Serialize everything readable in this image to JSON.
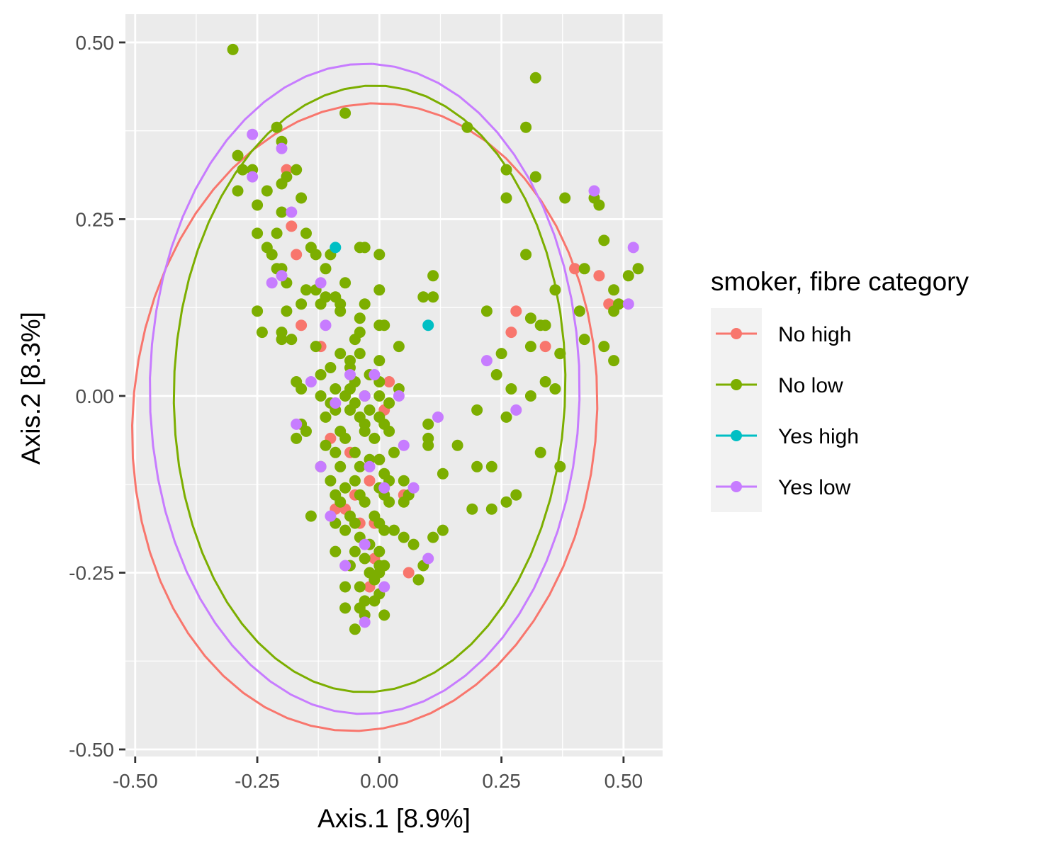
{
  "chart_data": {
    "type": "scatter",
    "xlabel": "Axis.1   [8.9%]",
    "ylabel": "Axis.2   [8.3%]",
    "xlim": [
      -0.52,
      0.58
    ],
    "ylim": [
      -0.51,
      0.54
    ],
    "x_ticks": [
      -0.5,
      -0.25,
      0.0,
      0.25,
      0.5
    ],
    "x_tick_labels": [
      "-0.50",
      "-0.25",
      "0.00",
      "0.25",
      "0.50"
    ],
    "y_ticks": [
      -0.5,
      -0.25,
      0.0,
      0.25,
      0.5
    ],
    "y_tick_labels": [
      "-0.50",
      "-0.25",
      "0.00",
      "0.25",
      "0.50"
    ],
    "grid": true,
    "background": "#ebebeb",
    "legend": {
      "title": "smoker, fibre category",
      "placement": "right",
      "entries": [
        "No high",
        "No low",
        "Yes high",
        "Yes low"
      ]
    },
    "series": [
      {
        "name": "No high",
        "color": "#f8766d",
        "points": [
          [
            -0.19,
            0.32
          ],
          [
            -0.18,
            0.24
          ],
          [
            -0.17,
            0.2
          ],
          [
            -0.16,
            0.1
          ],
          [
            -0.12,
            0.07
          ],
          [
            -0.1,
            -0.06
          ],
          [
            -0.09,
            -0.16
          ],
          [
            -0.07,
            -0.16
          ],
          [
            -0.06,
            -0.08
          ],
          [
            -0.05,
            -0.14
          ],
          [
            -0.04,
            -0.18
          ],
          [
            -0.02,
            -0.12
          ],
          [
            -0.01,
            -0.18
          ],
          [
            0.0,
            -0.09
          ],
          [
            -0.02,
            -0.27
          ],
          [
            -0.01,
            -0.23
          ],
          [
            0.02,
            0.02
          ],
          [
            0.01,
            -0.02
          ],
          [
            -0.03,
            0.0
          ],
          [
            0.05,
            -0.14
          ],
          [
            0.06,
            -0.25
          ],
          [
            0.27,
            0.09
          ],
          [
            0.28,
            0.12
          ],
          [
            0.34,
            0.07
          ],
          [
            0.4,
            0.18
          ],
          [
            0.45,
            0.17
          ],
          [
            0.47,
            0.13
          ]
        ],
        "ellipse": {
          "center": [
            -0.03,
            -0.03
          ],
          "semi_axes": [
            0.48,
            0.44
          ],
          "angle_deg": 18
        }
      },
      {
        "name": "No low",
        "color": "#7cae00",
        "points": [
          [
            -0.3,
            0.49
          ],
          [
            0.32,
            0.45
          ],
          [
            -0.07,
            0.4
          ],
          [
            0.18,
            0.38
          ],
          [
            0.3,
            0.38
          ],
          [
            -0.21,
            0.38
          ],
          [
            -0.2,
            0.36
          ],
          [
            -0.29,
            0.34
          ],
          [
            -0.28,
            0.32
          ],
          [
            -0.26,
            0.32
          ],
          [
            -0.17,
            0.32
          ],
          [
            0.26,
            0.32
          ],
          [
            0.32,
            0.31
          ],
          [
            -0.19,
            0.31
          ],
          [
            -0.2,
            0.3
          ],
          [
            -0.29,
            0.29
          ],
          [
            -0.23,
            0.29
          ],
          [
            0.26,
            0.28
          ],
          [
            0.38,
            0.28
          ],
          [
            -0.16,
            0.28
          ],
          [
            0.44,
            0.28
          ],
          [
            0.45,
            0.27
          ],
          [
            -0.25,
            0.27
          ],
          [
            -0.2,
            0.26
          ],
          [
            -0.25,
            0.23
          ],
          [
            -0.21,
            0.23
          ],
          [
            -0.15,
            0.23
          ],
          [
            0.46,
            0.22
          ],
          [
            -0.23,
            0.21
          ],
          [
            -0.03,
            0.21
          ],
          [
            -0.04,
            0.21
          ],
          [
            0.3,
            0.2
          ],
          [
            -0.14,
            0.21
          ],
          [
            -0.13,
            0.2
          ],
          [
            -0.1,
            0.2
          ],
          [
            0.0,
            0.2
          ],
          [
            -0.22,
            0.2
          ],
          [
            -0.21,
            0.18
          ],
          [
            -0.2,
            0.18
          ],
          [
            -0.11,
            0.18
          ],
          [
            0.53,
            0.18
          ],
          [
            0.51,
            0.17
          ],
          [
            0.42,
            0.18
          ],
          [
            0.11,
            0.17
          ],
          [
            -0.07,
            0.16
          ],
          [
            -0.19,
            0.16
          ],
          [
            0.36,
            0.15
          ],
          [
            -0.15,
            0.15
          ],
          [
            -0.13,
            0.15
          ],
          [
            -0.11,
            0.14
          ],
          [
            -0.09,
            0.14
          ],
          [
            0.48,
            0.15
          ],
          [
            0.0,
            0.15
          ],
          [
            0.09,
            0.14
          ],
          [
            0.11,
            0.14
          ],
          [
            -0.16,
            0.13
          ],
          [
            -0.12,
            0.13
          ],
          [
            -0.08,
            0.13
          ],
          [
            -0.03,
            0.13
          ],
          [
            -0.25,
            0.12
          ],
          [
            -0.19,
            0.12
          ],
          [
            0.22,
            0.12
          ],
          [
            0.48,
            0.12
          ],
          [
            0.49,
            0.13
          ],
          [
            0.31,
            0.11
          ],
          [
            0.41,
            0.12
          ],
          [
            -0.08,
            0.12
          ],
          [
            -0.04,
            0.11
          ],
          [
            0.33,
            0.1
          ],
          [
            0.34,
            0.1
          ],
          [
            0.0,
            0.1
          ],
          [
            0.01,
            0.1
          ],
          [
            -0.2,
            0.09
          ],
          [
            -0.24,
            0.09
          ],
          [
            -0.04,
            0.09
          ],
          [
            -0.18,
            0.08
          ],
          [
            -0.05,
            0.08
          ],
          [
            0.42,
            0.08
          ],
          [
            -0.2,
            0.08
          ],
          [
            0.31,
            0.07
          ],
          [
            -0.13,
            0.07
          ],
          [
            0.37,
            0.06
          ],
          [
            0.46,
            0.07
          ],
          [
            -0.08,
            0.06
          ],
          [
            -0.04,
            0.06
          ],
          [
            0.04,
            0.07
          ],
          [
            -0.06,
            0.05
          ],
          [
            0.0,
            0.05
          ],
          [
            0.25,
            0.06
          ],
          [
            0.37,
            0.06
          ],
          [
            -0.1,
            0.04
          ],
          [
            -0.06,
            0.04
          ],
          [
            0.48,
            0.05
          ],
          [
            -0.12,
            0.03
          ],
          [
            0.24,
            0.03
          ],
          [
            -0.05,
            0.02
          ],
          [
            -0.02,
            0.03
          ],
          [
            0.27,
            0.01
          ],
          [
            0.34,
            0.02
          ],
          [
            0.36,
            0.01
          ],
          [
            -0.17,
            0.02
          ],
          [
            -0.16,
            0.01
          ],
          [
            -0.09,
            0.01
          ],
          [
            -0.06,
            0.01
          ],
          [
            0.0,
            0.02
          ],
          [
            0.04,
            0.01
          ],
          [
            -0.12,
            0.0
          ],
          [
            -0.07,
            0.0
          ],
          [
            -0.03,
            0.0
          ],
          [
            0.0,
            0.0
          ],
          [
            0.31,
            0.0
          ],
          [
            -0.1,
            -0.01
          ],
          [
            -0.05,
            -0.01
          ],
          [
            -0.02,
            -0.02
          ],
          [
            0.02,
            -0.01
          ],
          [
            0.2,
            -0.02
          ],
          [
            -0.09,
            -0.02
          ],
          [
            -0.06,
            -0.02
          ],
          [
            -0.04,
            -0.03
          ],
          [
            0.0,
            -0.03
          ],
          [
            0.26,
            -0.03
          ],
          [
            -0.11,
            -0.03
          ],
          [
            -0.03,
            -0.04
          ],
          [
            0.01,
            -0.04
          ],
          [
            0.1,
            -0.04
          ],
          [
            -0.16,
            -0.04
          ],
          [
            -0.15,
            -0.05
          ],
          [
            -0.08,
            -0.05
          ],
          [
            -0.03,
            -0.05
          ],
          [
            0.02,
            -0.05
          ],
          [
            -0.07,
            -0.06
          ],
          [
            -0.01,
            -0.06
          ],
          [
            0.1,
            -0.06
          ],
          [
            0.16,
            -0.07
          ],
          [
            -0.17,
            -0.06
          ],
          [
            -0.11,
            -0.07
          ],
          [
            -0.05,
            -0.08
          ],
          [
            0.03,
            -0.08
          ],
          [
            -0.09,
            -0.08
          ],
          [
            -0.02,
            -0.09
          ],
          [
            0.0,
            -0.09
          ],
          [
            0.1,
            -0.07
          ],
          [
            0.2,
            -0.1
          ],
          [
            0.23,
            -0.1
          ],
          [
            -0.12,
            -0.1
          ],
          [
            -0.08,
            -0.1
          ],
          [
            -0.04,
            -0.1
          ],
          [
            0.01,
            -0.11
          ],
          [
            0.13,
            -0.11
          ],
          [
            -0.05,
            -0.12
          ],
          [
            0.02,
            -0.12
          ],
          [
            0.37,
            -0.1
          ],
          [
            0.33,
            -0.08
          ],
          [
            -0.1,
            -0.12
          ],
          [
            -0.07,
            -0.13
          ],
          [
            0.0,
            -0.13
          ],
          [
            0.05,
            -0.12
          ],
          [
            -0.09,
            -0.14
          ],
          [
            -0.04,
            -0.14
          ],
          [
            0.01,
            -0.14
          ],
          [
            0.06,
            -0.14
          ],
          [
            0.28,
            -0.14
          ],
          [
            -0.14,
            -0.17
          ],
          [
            -0.08,
            -0.15
          ],
          [
            -0.03,
            -0.15
          ],
          [
            0.02,
            -0.15
          ],
          [
            0.05,
            -0.15
          ],
          [
            0.19,
            -0.16
          ],
          [
            0.23,
            -0.16
          ],
          [
            0.26,
            -0.15
          ],
          [
            -0.06,
            -0.17
          ],
          [
            -0.01,
            -0.17
          ],
          [
            -0.09,
            -0.18
          ],
          [
            -0.05,
            -0.18
          ],
          [
            0.0,
            -0.18
          ],
          [
            0.03,
            -0.19
          ],
          [
            0.13,
            -0.19
          ],
          [
            -0.07,
            -0.19
          ],
          [
            -0.04,
            -0.2
          ],
          [
            0.01,
            -0.19
          ],
          [
            0.05,
            -0.2
          ],
          [
            0.11,
            -0.2
          ],
          [
            -0.02,
            -0.21
          ],
          [
            0.07,
            -0.21
          ],
          [
            -0.05,
            -0.22
          ],
          [
            0.0,
            -0.22
          ],
          [
            -0.09,
            -0.22
          ],
          [
            -0.03,
            -0.23
          ],
          [
            0.0,
            -0.24
          ],
          [
            -0.06,
            -0.24
          ],
          [
            0.01,
            -0.24
          ],
          [
            0.09,
            -0.24
          ],
          [
            -0.02,
            -0.25
          ],
          [
            0.0,
            -0.25
          ],
          [
            -0.01,
            -0.26
          ],
          [
            0.08,
            -0.26
          ],
          [
            -0.04,
            -0.27
          ],
          [
            -0.07,
            -0.27
          ],
          [
            0.0,
            -0.28
          ],
          [
            -0.03,
            -0.29
          ],
          [
            -0.01,
            -0.29
          ],
          [
            -0.04,
            -0.3
          ],
          [
            -0.07,
            -0.3
          ],
          [
            0.01,
            -0.31
          ],
          [
            -0.03,
            -0.31
          ],
          [
            -0.05,
            -0.33
          ]
        ],
        "ellipse": {
          "center": [
            -0.02,
            0.01
          ],
          "semi_axes": [
            0.43,
            0.4
          ],
          "angle_deg": 80
        }
      },
      {
        "name": "Yes high",
        "color": "#00bfc4",
        "points": [
          [
            -0.09,
            0.21
          ],
          [
            0.1,
            0.1
          ]
        ]
      },
      {
        "name": "Yes low",
        "color": "#c77cff",
        "points": [
          [
            -0.26,
            0.37
          ],
          [
            -0.2,
            0.35
          ],
          [
            -0.26,
            0.31
          ],
          [
            -0.18,
            0.26
          ],
          [
            -0.22,
            0.16
          ],
          [
            -0.2,
            0.17
          ],
          [
            -0.12,
            0.16
          ],
          [
            -0.11,
            0.1
          ],
          [
            -0.14,
            0.02
          ],
          [
            -0.09,
            -0.01
          ],
          [
            -0.17,
            -0.04
          ],
          [
            0.04,
            0.0
          ],
          [
            0.12,
            -0.03
          ],
          [
            0.28,
            -0.02
          ],
          [
            0.22,
            0.05
          ],
          [
            0.44,
            0.29
          ],
          [
            0.52,
            0.21
          ],
          [
            0.51,
            0.13
          ],
          [
            -0.06,
            0.03
          ],
          [
            0.05,
            -0.07
          ],
          [
            -0.12,
            -0.1
          ],
          [
            -0.02,
            -0.1
          ],
          [
            0.01,
            -0.13
          ],
          [
            0.07,
            -0.13
          ],
          [
            -0.1,
            -0.17
          ],
          [
            -0.03,
            -0.21
          ],
          [
            0.1,
            -0.23
          ],
          [
            -0.07,
            -0.24
          ],
          [
            0.01,
            -0.27
          ],
          [
            -0.03,
            -0.32
          ],
          [
            -0.03,
            0.0
          ],
          [
            -0.01,
            0.03
          ]
        ],
        "ellipse": {
          "center": [
            -0.03,
            0.01
          ],
          "semi_axes": [
            0.46,
            0.44
          ],
          "angle_deg": 88
        }
      }
    ]
  }
}
